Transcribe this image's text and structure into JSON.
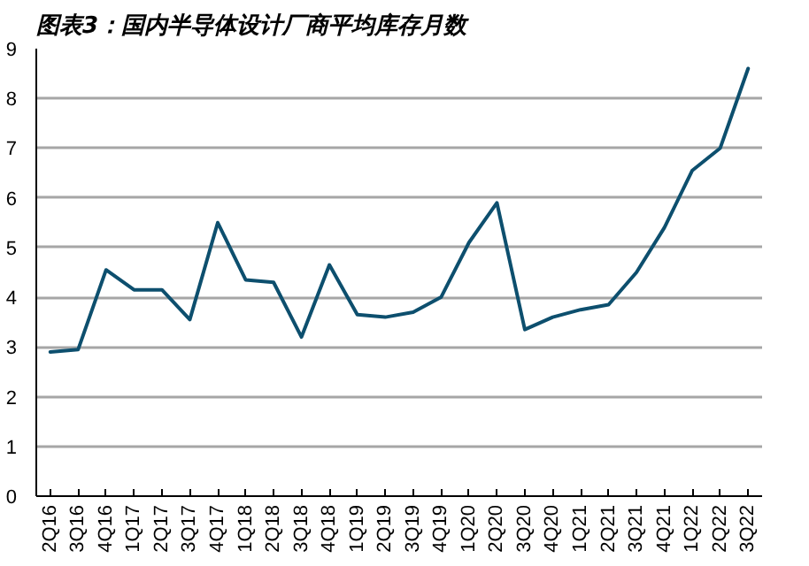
{
  "chart_data": {
    "type": "line",
    "title": "图表3：国内半导体设计厂商平均库存月数",
    "categories": [
      "2Q16",
      "3Q16",
      "4Q16",
      "1Q17",
      "2Q17",
      "3Q17",
      "4Q17",
      "1Q18",
      "2Q18",
      "3Q18",
      "4Q18",
      "1Q19",
      "2Q19",
      "3Q19",
      "4Q19",
      "1Q20",
      "2Q20",
      "3Q20",
      "4Q20",
      "1Q21",
      "2Q21",
      "3Q21",
      "4Q21",
      "1Q22",
      "2Q22",
      "3Q22"
    ],
    "series": [
      {
        "color": "#0d4f6e",
        "values": [
          2.9,
          2.95,
          4.55,
          4.15,
          4.15,
          3.55,
          5.5,
          4.35,
          4.3,
          3.2,
          4.65,
          3.65,
          3.6,
          3.7,
          4.0,
          5.1,
          5.9,
          3.35,
          3.6,
          3.75,
          3.85,
          4.5,
          5.4,
          6.55,
          7.0,
          8.6
        ]
      }
    ],
    "ylim": [
      0,
      9
    ],
    "yticks": [
      0,
      1,
      2,
      3,
      4,
      5,
      6,
      7,
      8,
      9
    ],
    "grid": "y",
    "marker": "none",
    "line_style": "solid"
  }
}
